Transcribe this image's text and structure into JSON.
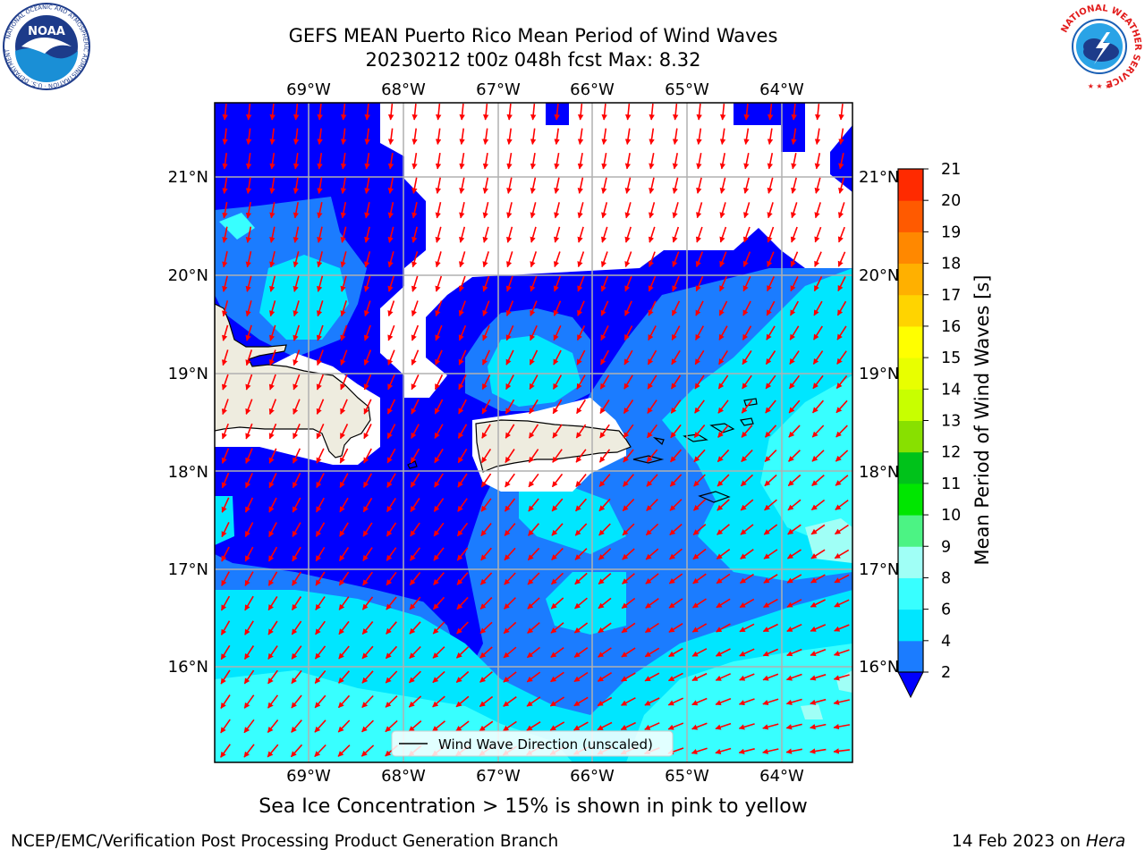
{
  "title": {
    "line1": "GEFS MEAN Puerto Rico Mean Period of Wind Waves",
    "line2": "20230212 t00z 048h fcst   Max: 8.32"
  },
  "map": {
    "lon_ticks": [
      "69°W",
      "68°W",
      "67°W",
      "66°W",
      "65°W",
      "64°W"
    ],
    "lat_ticks": [
      "21°N",
      "20°N",
      "19°N",
      "18°N",
      "17°N",
      "16°N"
    ],
    "legend_label": "Wind Wave Direction (unscaled)",
    "arrow_color": "#ff0000",
    "land_color": "#eeecdf",
    "gridline_color": "#b0b0b0"
  },
  "colorbar": {
    "label": "Mean Period of Wind Waves [s]",
    "tick_labels": [
      "2",
      "4",
      "6",
      "8",
      "9",
      "10",
      "11",
      "12",
      "13",
      "14",
      "15",
      "16",
      "17",
      "18",
      "19",
      "20",
      "21"
    ],
    "colors": [
      "#1b7cff",
      "#00e6ff",
      "#38ffff",
      "#a0fff6",
      "#4cf384",
      "#00e600",
      "#00c21a",
      "#88e000",
      "#c8ff00",
      "#e8ff00",
      "#ffff00",
      "#ffd400",
      "#ffb000",
      "#ff8800",
      "#ff5a00",
      "#ff2a00"
    ],
    "under_color": "#0000ff"
  },
  "sea_ice_note": "Sea Ice Concentration > 15% is shown in pink to yellow",
  "footer": {
    "left": "NCEP/EMC/Verification Post Processing Product Generation Branch",
    "right_date": "14 Feb 2023 on ",
    "right_host": "Hera"
  },
  "logos": {
    "noaa_text": "NOAA",
    "noaa_ring_text": "NATIONAL OCEANIC AND ATMOSPHERIC ADMINISTRATION · U.S. DEPARTMENT OF COMMERCE",
    "nws_ring_text": "NATIONAL WEATHER SERVICE"
  }
}
